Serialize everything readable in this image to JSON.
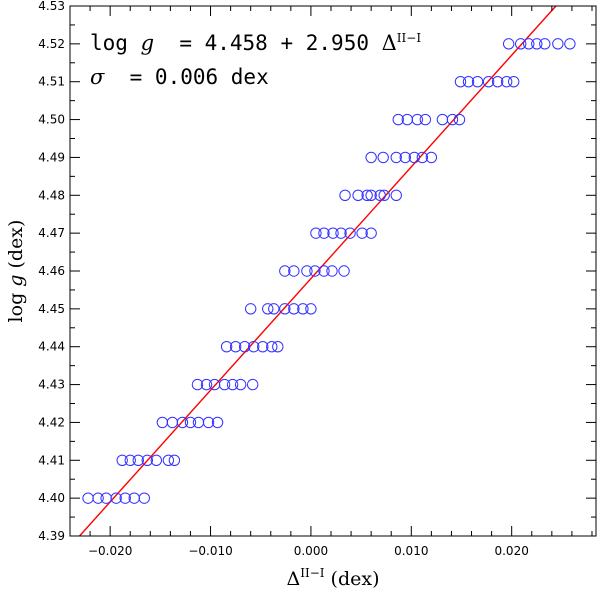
{
  "chart_data": {
    "type": "scatter",
    "xlabel": "Δ^{II−I} (dex)",
    "ylabel": "log g (dex)",
    "xlim": [
      -0.024,
      0.0284
    ],
    "ylim": [
      4.39,
      4.53
    ],
    "x_ticks": [
      -0.02,
      -0.01,
      0.0,
      0.01,
      0.02
    ],
    "x_tick_labels": [
      "−0.020",
      "−0.010",
      "0.000",
      "0.010",
      "0.020"
    ],
    "y_ticks": [
      4.39,
      4.4,
      4.41,
      4.42,
      4.43,
      4.44,
      4.45,
      4.46,
      4.47,
      4.48,
      4.49,
      4.5,
      4.51,
      4.52,
      4.53
    ],
    "y_tick_labels": [
      "4.39",
      "4.40",
      "4.41",
      "4.42",
      "4.43",
      "4.44",
      "4.45",
      "4.46",
      "4.47",
      "4.48",
      "4.49",
      "4.50",
      "4.51",
      "4.52",
      "4.53"
    ],
    "grid": false,
    "series": [
      {
        "marker": "open-circle",
        "color": "#3333ff",
        "points": [
          {
            "x": -0.0222,
            "y": 4.4
          },
          {
            "x": -0.0212,
            "y": 4.4
          },
          {
            "x": -0.0204,
            "y": 4.4
          },
          {
            "x": -0.0194,
            "y": 4.4
          },
          {
            "x": -0.0185,
            "y": 4.4
          },
          {
            "x": -0.0176,
            "y": 4.4
          },
          {
            "x": -0.0166,
            "y": 4.4
          },
          {
            "x": -0.0188,
            "y": 4.41
          },
          {
            "x": -0.018,
            "y": 4.41
          },
          {
            "x": -0.0172,
            "y": 4.41
          },
          {
            "x": -0.0163,
            "y": 4.41
          },
          {
            "x": -0.0154,
            "y": 4.41
          },
          {
            "x": -0.0142,
            "y": 4.41
          },
          {
            "x": -0.0136,
            "y": 4.41
          },
          {
            "x": -0.0148,
            "y": 4.42
          },
          {
            "x": -0.0138,
            "y": 4.42
          },
          {
            "x": -0.0128,
            "y": 4.42
          },
          {
            "x": -0.012,
            "y": 4.42
          },
          {
            "x": -0.0112,
            "y": 4.42
          },
          {
            "x": -0.0102,
            "y": 4.42
          },
          {
            "x": -0.0093,
            "y": 4.42
          },
          {
            "x": -0.0113,
            "y": 4.43
          },
          {
            "x": -0.0104,
            "y": 4.43
          },
          {
            "x": -0.0096,
            "y": 4.43
          },
          {
            "x": -0.0086,
            "y": 4.43
          },
          {
            "x": -0.0078,
            "y": 4.43
          },
          {
            "x": -0.007,
            "y": 4.43
          },
          {
            "x": -0.0058,
            "y": 4.43
          },
          {
            "x": -0.0084,
            "y": 4.44
          },
          {
            "x": -0.0075,
            "y": 4.44
          },
          {
            "x": -0.0066,
            "y": 4.44
          },
          {
            "x": -0.0057,
            "y": 4.44
          },
          {
            "x": -0.0048,
            "y": 4.44
          },
          {
            "x": -0.0039,
            "y": 4.44
          },
          {
            "x": -0.0033,
            "y": 4.44
          },
          {
            "x": -0.006,
            "y": 4.45
          },
          {
            "x": -0.0043,
            "y": 4.45
          },
          {
            "x": -0.0037,
            "y": 4.45
          },
          {
            "x": -0.0026,
            "y": 4.45
          },
          {
            "x": -0.0017,
            "y": 4.45
          },
          {
            "x": -0.0008,
            "y": 4.45
          },
          {
            "x": 0.0,
            "y": 4.45
          },
          {
            "x": -0.0026,
            "y": 4.46
          },
          {
            "x": -0.0017,
            "y": 4.46
          },
          {
            "x": -0.0004,
            "y": 4.46
          },
          {
            "x": 0.0004,
            "y": 4.46
          },
          {
            "x": 0.0013,
            "y": 4.46
          },
          {
            "x": 0.0021,
            "y": 4.46
          },
          {
            "x": 0.0033,
            "y": 4.46
          },
          {
            "x": 0.0005,
            "y": 4.47
          },
          {
            "x": 0.0013,
            "y": 4.47
          },
          {
            "x": 0.0022,
            "y": 4.47
          },
          {
            "x": 0.003,
            "y": 4.47
          },
          {
            "x": 0.0039,
            "y": 4.47
          },
          {
            "x": 0.0051,
            "y": 4.47
          },
          {
            "x": 0.006,
            "y": 4.47
          },
          {
            "x": 0.0034,
            "y": 4.48
          },
          {
            "x": 0.0047,
            "y": 4.48
          },
          {
            "x": 0.0056,
            "y": 4.48
          },
          {
            "x": 0.006,
            "y": 4.48
          },
          {
            "x": 0.0069,
            "y": 4.48
          },
          {
            "x": 0.0073,
            "y": 4.48
          },
          {
            "x": 0.0085,
            "y": 4.48
          },
          {
            "x": 0.006,
            "y": 4.49
          },
          {
            "x": 0.0072,
            "y": 4.49
          },
          {
            "x": 0.0085,
            "y": 4.49
          },
          {
            "x": 0.0094,
            "y": 4.49
          },
          {
            "x": 0.0103,
            "y": 4.49
          },
          {
            "x": 0.0111,
            "y": 4.49
          },
          {
            "x": 0.012,
            "y": 4.49
          },
          {
            "x": 0.0087,
            "y": 4.5
          },
          {
            "x": 0.0096,
            "y": 4.5
          },
          {
            "x": 0.0106,
            "y": 4.5
          },
          {
            "x": 0.0114,
            "y": 4.5
          },
          {
            "x": 0.0131,
            "y": 4.5
          },
          {
            "x": 0.0141,
            "y": 4.5
          },
          {
            "x": 0.0148,
            "y": 4.5
          },
          {
            "x": 0.0149,
            "y": 4.51
          },
          {
            "x": 0.0157,
            "y": 4.51
          },
          {
            "x": 0.0166,
            "y": 4.51
          },
          {
            "x": 0.0177,
            "y": 4.51
          },
          {
            "x": 0.0186,
            "y": 4.51
          },
          {
            "x": 0.0195,
            "y": 4.51
          },
          {
            "x": 0.0202,
            "y": 4.51
          },
          {
            "x": 0.0197,
            "y": 4.52
          },
          {
            "x": 0.0209,
            "y": 4.52
          },
          {
            "x": 0.0217,
            "y": 4.52
          },
          {
            "x": 0.0225,
            "y": 4.52
          },
          {
            "x": 0.0233,
            "y": 4.52
          },
          {
            "x": 0.0246,
            "y": 4.52
          },
          {
            "x": 0.0258,
            "y": 4.52
          }
        ]
      }
    ],
    "fit_line": {
      "color": "#ff0000",
      "intercept": 4.458,
      "slope": 2.95
    },
    "annotations": [
      {
        "prefix": "log ",
        "var": "g",
        "eq1": "= 4.458 + 2.950 ",
        "delta": "Δ",
        "sup": "II−I"
      },
      {
        "sigma": "σ",
        "eq2": "= 0.006 dex"
      }
    ]
  },
  "annot": {
    "line1_prefix": "log ",
    "line1_var": "g",
    "line1_eq": "= 4.458 + 2.950 ",
    "line1_delta": "Δ",
    "line1_sup": "II−I",
    "line2_sigma": "σ",
    "line2_eq": "= 0.006 dex"
  },
  "axes": {
    "xlabel_delta": "Δ",
    "xlabel_sup": "II−I",
    "xlabel_unit": " (dex)",
    "ylabel_log": "log ",
    "ylabel_var": "g",
    "ylabel_unit": " (dex)"
  }
}
